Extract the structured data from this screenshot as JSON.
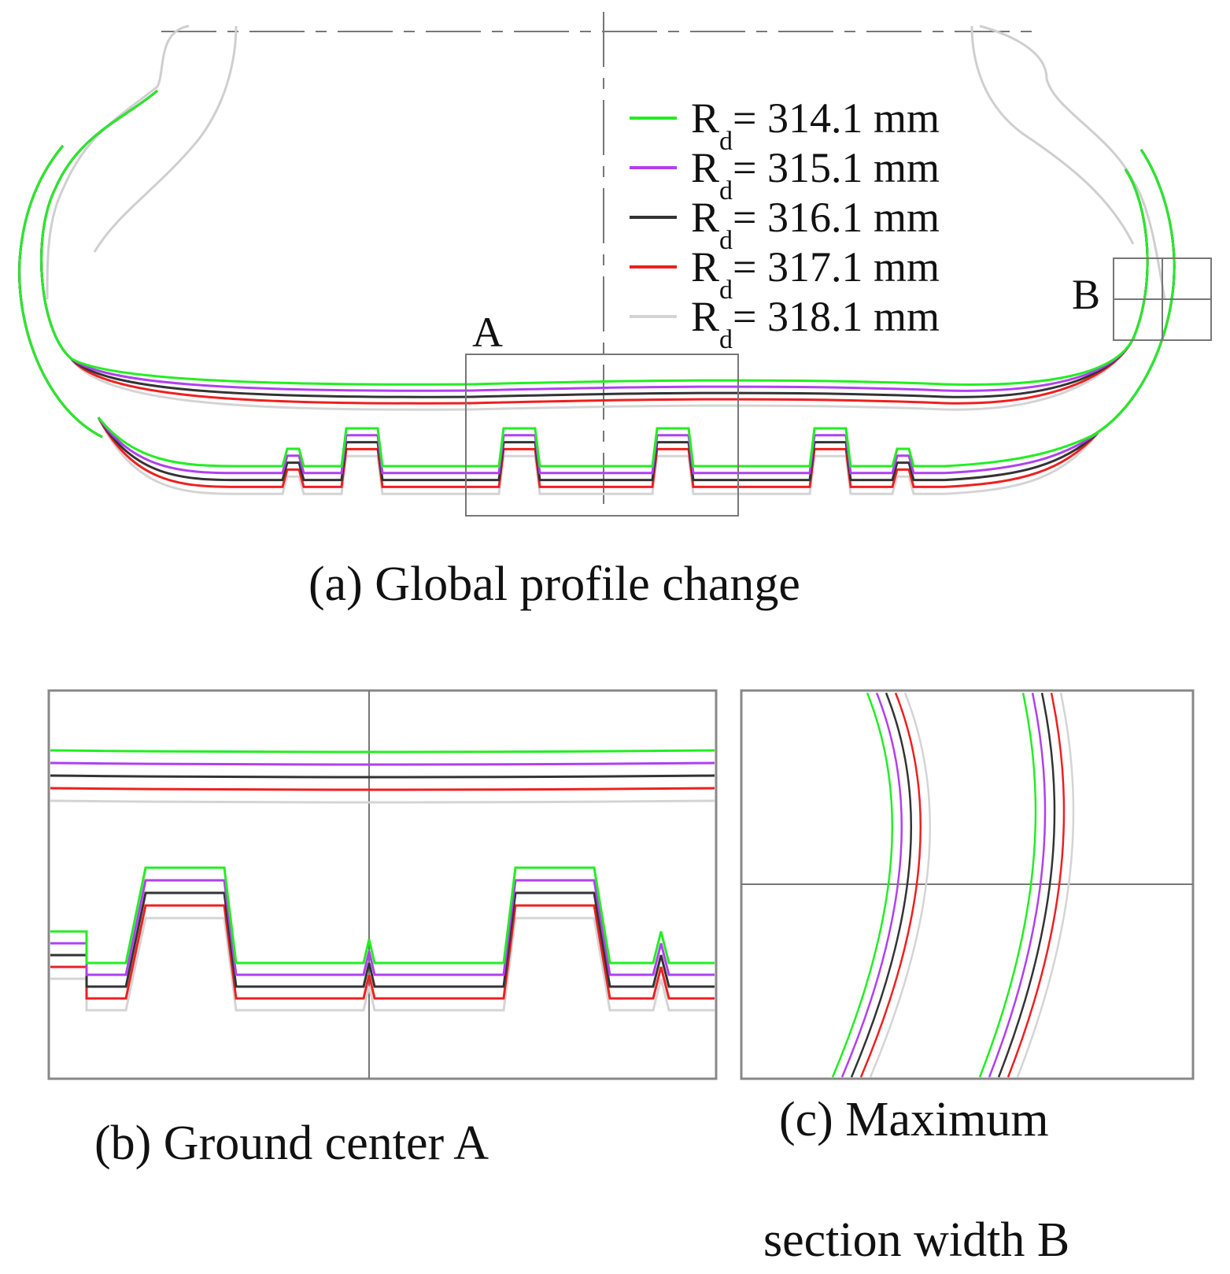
{
  "legend": {
    "items": [
      {
        "prefix": "R",
        "sub": "d",
        "value": "= 314.1 mm",
        "color": "#22ee22"
      },
      {
        "prefix": "R",
        "sub": "d",
        "value": "= 315.1 mm",
        "color": "#b040f0"
      },
      {
        "prefix": "R",
        "sub": "d",
        "value": "= 316.1 mm",
        "color": "#333333"
      },
      {
        "prefix": "R",
        "sub": "d",
        "value": "= 317.1 mm",
        "color": "#ee2020"
      },
      {
        "prefix": "R",
        "sub": "d",
        "value": "= 318.1 mm",
        "color": "#d4d4d4"
      }
    ]
  },
  "labels": {
    "region_a": "A",
    "region_b": "B"
  },
  "captions": {
    "a": "(a) Global profile change",
    "b": "(b) Ground center A",
    "c_line1": "(c) Maximum",
    "c_line2": "section width B"
  }
}
